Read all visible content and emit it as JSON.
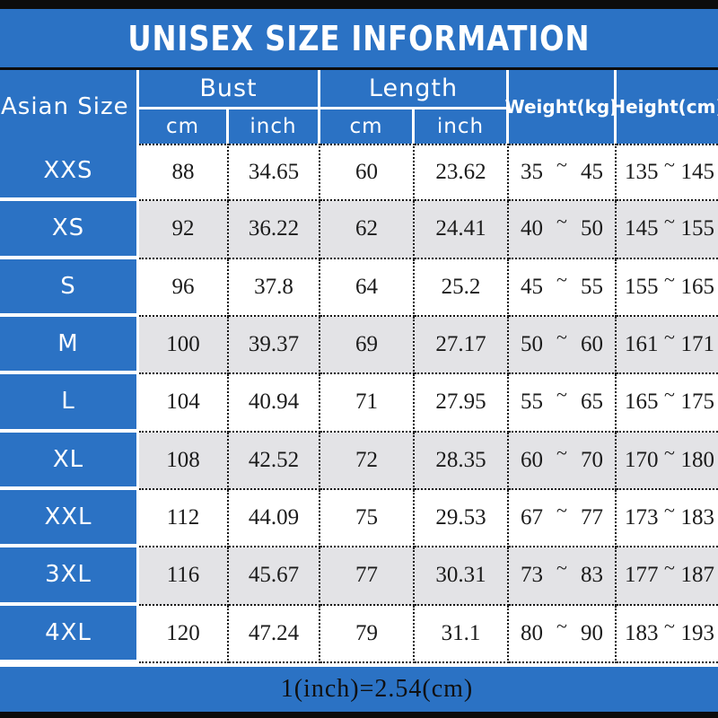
{
  "title": "UNISEX SIZE INFORMATION",
  "footer_note": "1(inch)=2.54(cm)",
  "symbols": {
    "tilde": "~"
  },
  "colors": {
    "accent_blue": "#2b72c4",
    "row_alt_gray": "#e3e3e6",
    "bar_black": "#0c0c0c",
    "header_text": "#ffffff",
    "data_text": "#1b1b1b"
  },
  "header": {
    "size_column": "Asian Size",
    "bust": "Bust",
    "length": "Length",
    "weight": "Weight(kg)",
    "height": "Height(cm)",
    "cm": "cm",
    "inch": "inch"
  },
  "chart_data": {
    "type": "table",
    "title": "UNISEX SIZE INFORMATION",
    "footnote": "1(inch)=2.54(cm)",
    "columns": [
      "Asian Size",
      "Bust cm",
      "Bust inch",
      "Length cm",
      "Length inch",
      "Weight(kg)",
      "Height(cm)"
    ],
    "rows": [
      {
        "size": "XXS",
        "bust_cm": "88",
        "bust_inch": "34.65",
        "length_cm": "60",
        "length_inch": "23.62",
        "weight_min": "35",
        "weight_max": "45",
        "height_min": "135",
        "height_max": "145"
      },
      {
        "size": "XS",
        "bust_cm": "92",
        "bust_inch": "36.22",
        "length_cm": "62",
        "length_inch": "24.41",
        "weight_min": "40",
        "weight_max": "50",
        "height_min": "145",
        "height_max": "155"
      },
      {
        "size": "S",
        "bust_cm": "96",
        "bust_inch": "37.8",
        "length_cm": "64",
        "length_inch": "25.2",
        "weight_min": "45",
        "weight_max": "55",
        "height_min": "155",
        "height_max": "165"
      },
      {
        "size": "M",
        "bust_cm": "100",
        "bust_inch": "39.37",
        "length_cm": "69",
        "length_inch": "27.17",
        "weight_min": "50",
        "weight_max": "60",
        "height_min": "161",
        "height_max": "171"
      },
      {
        "size": "L",
        "bust_cm": "104",
        "bust_inch": "40.94",
        "length_cm": "71",
        "length_inch": "27.95",
        "weight_min": "55",
        "weight_max": "65",
        "height_min": "165",
        "height_max": "175"
      },
      {
        "size": "XL",
        "bust_cm": "108",
        "bust_inch": "42.52",
        "length_cm": "72",
        "length_inch": "28.35",
        "weight_min": "60",
        "weight_max": "70",
        "height_min": "170",
        "height_max": "180"
      },
      {
        "size": "XXL",
        "bust_cm": "112",
        "bust_inch": "44.09",
        "length_cm": "75",
        "length_inch": "29.53",
        "weight_min": "67",
        "weight_max": "77",
        "height_min": "173",
        "height_max": "183"
      },
      {
        "size": "3XL",
        "bust_cm": "116",
        "bust_inch": "45.67",
        "length_cm": "77",
        "length_inch": "30.31",
        "weight_min": "73",
        "weight_max": "83",
        "height_min": "177",
        "height_max": "187"
      },
      {
        "size": "4XL",
        "bust_cm": "120",
        "bust_inch": "47.24",
        "length_cm": "79",
        "length_inch": "31.1",
        "weight_min": "80",
        "weight_max": "90",
        "height_min": "183",
        "height_max": "193"
      }
    ]
  }
}
